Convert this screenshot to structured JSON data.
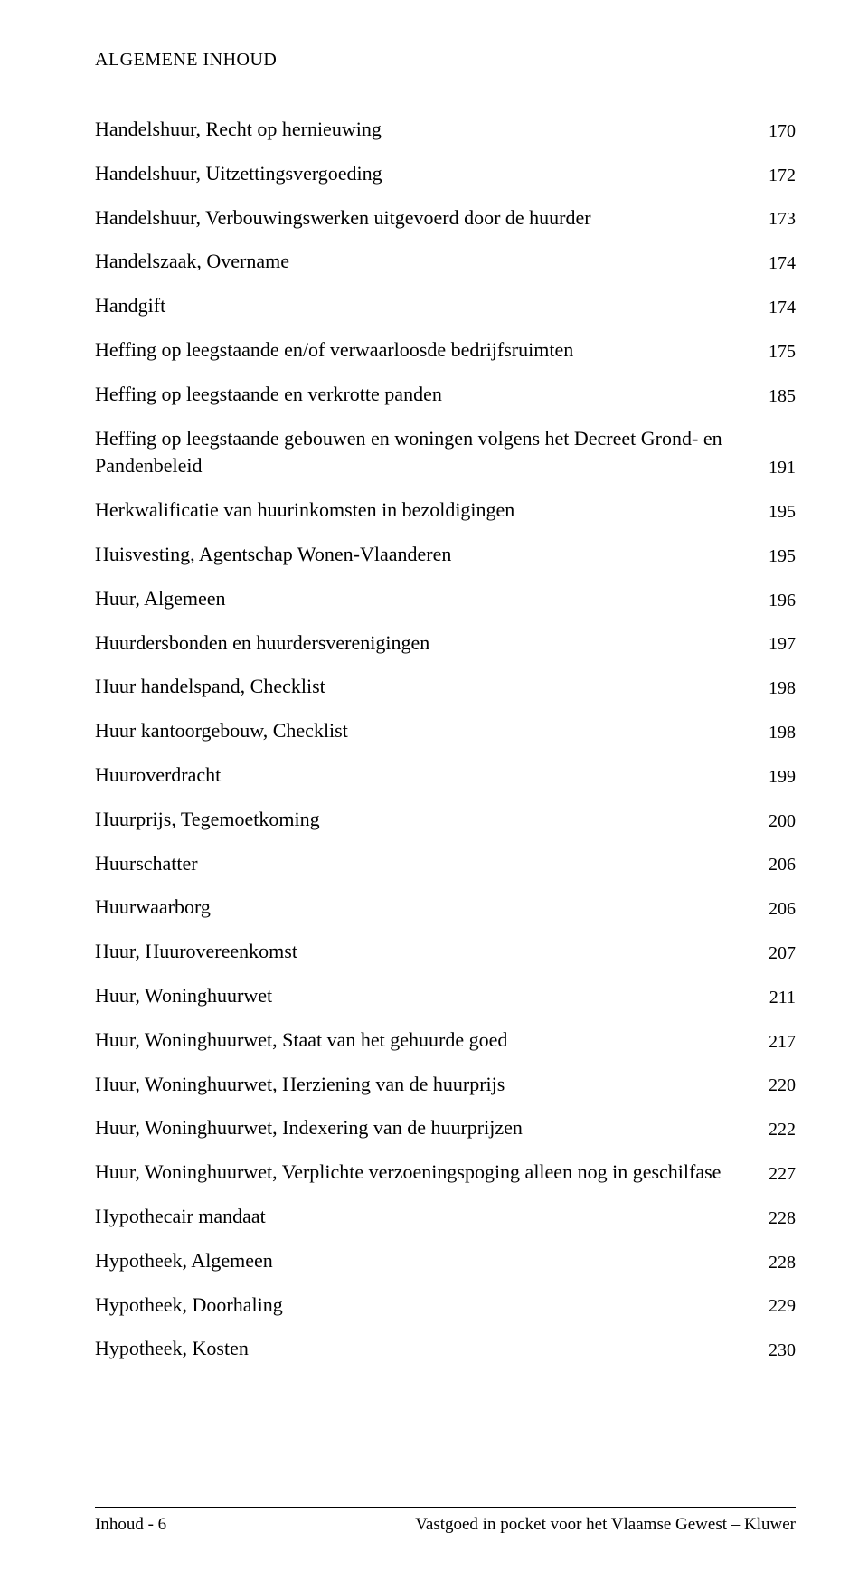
{
  "header": "ALGEMENE INHOUD",
  "entries": [
    {
      "label": "Handelshuur, Recht op hernieuwing",
      "page": "170"
    },
    {
      "label": "Handelshuur, Uitzettingsvergoeding",
      "page": "172"
    },
    {
      "label": "Handelshuur, Verbouwingswerken uitgevoerd door de huurder",
      "page": "173"
    },
    {
      "label": "Handelszaak, Overname",
      "page": "174"
    },
    {
      "label": "Handgift",
      "page": "174"
    },
    {
      "label": "Heffing op leegstaande en/of verwaarloosde bedrijfsruimten",
      "page": "175"
    },
    {
      "label": "Heffing op leegstaande en verkrotte panden",
      "page": "185"
    },
    {
      "label": "Heffing op leegstaande gebouwen en woningen volgens het Decreet Grond- en Pandenbeleid",
      "page": "191"
    },
    {
      "label": "Herkwalificatie van huurinkomsten in bezoldigingen",
      "page": "195"
    },
    {
      "label": "Huisvesting, Agentschap Wonen-Vlaanderen",
      "page": "195"
    },
    {
      "label": "Huur, Algemeen",
      "page": "196"
    },
    {
      "label": "Huurdersbonden en huurdersverenigingen",
      "page": "197"
    },
    {
      "label": "Huur handelspand, Checklist",
      "page": "198"
    },
    {
      "label": "Huur kantoorgebouw, Checklist",
      "page": "198"
    },
    {
      "label": "Huuroverdracht",
      "page": "199"
    },
    {
      "label": "Huurprijs, Tegemoetkoming",
      "page": "200"
    },
    {
      "label": "Huurschatter",
      "page": "206"
    },
    {
      "label": "Huurwaarborg",
      "page": "206"
    },
    {
      "label": "Huur, Huurovereenkomst",
      "page": "207"
    },
    {
      "label": "Huur, Woninghuurwet",
      "page": "211"
    },
    {
      "label": "Huur, Woninghuurwet, Staat van het gehuurde goed",
      "page": "217"
    },
    {
      "label": "Huur, Woninghuurwet, Herziening van de huurprijs",
      "page": "220"
    },
    {
      "label": "Huur, Woninghuurwet, Indexering van de huurprijzen",
      "page": "222"
    },
    {
      "label": "Huur, Woninghuurwet, Verplichte verzoeningspoging alleen nog in geschilfase",
      "page": "227"
    },
    {
      "label": "Hypothecair mandaat",
      "page": "228"
    },
    {
      "label": "Hypotheek, Algemeen",
      "page": "228"
    },
    {
      "label": "Hypotheek, Doorhaling",
      "page": "229"
    },
    {
      "label": "Hypotheek, Kosten",
      "page": "230"
    }
  ],
  "footer": {
    "left": "Inhoud - 6",
    "right": "Vastgoed in pocket voor het Vlaamse Gewest – Kluwer"
  },
  "colors": {
    "text": "#000000",
    "background": "#ffffff"
  },
  "typography": {
    "body_font": "Times New Roman",
    "entry_fontsize": 22,
    "page_fontsize": 20,
    "header_fontsize": 20,
    "footer_fontsize": 19
  }
}
